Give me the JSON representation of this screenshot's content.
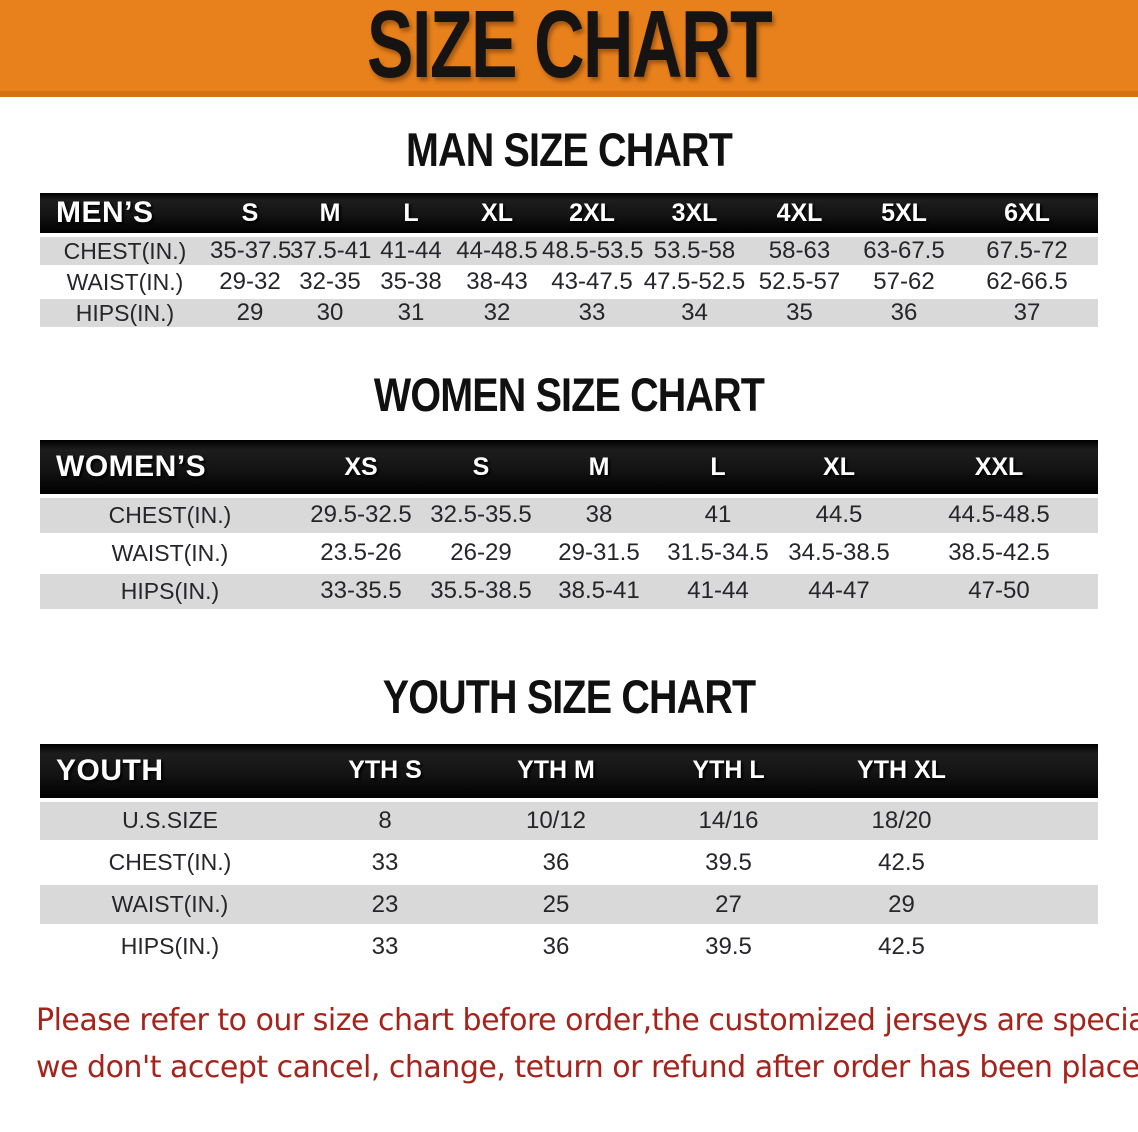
{
  "banner": {
    "title": "SIZE CHART"
  },
  "sections": [
    {
      "id": "men",
      "title": "MAN SIZE CHART",
      "table": {
        "label": "MEN’S",
        "columns": [
          "S",
          "M",
          "L",
          "XL",
          "2XL",
          "3XL",
          "4XL",
          "5XL",
          "6XL"
        ],
        "rows": [
          {
            "label": "CHEST(IN.)",
            "values": [
              "35-37.5",
              "37.5-41",
              "41-44",
              "44-48.5",
              "48.5-53.5",
              "53.5-58",
              "58-63",
              "63-67.5",
              "67.5-72"
            ]
          },
          {
            "label": "WAIST(IN.)",
            "values": [
              "29-32",
              "32-35",
              "35-38",
              "38-43",
              "43-47.5",
              "47.5-52.5",
              "52.5-57",
              "57-62",
              "62-66.5"
            ]
          },
          {
            "label": "HIPS(IN.)",
            "values": [
              "29",
              "30",
              "31",
              "32",
              "33",
              "34",
              "35",
              "36",
              "37"
            ]
          }
        ]
      }
    },
    {
      "id": "women",
      "title": "WOMEN SIZE CHART",
      "table": {
        "label": "WOMEN’S",
        "columns": [
          "XS",
          "S",
          "M",
          "L",
          "XL",
          "XXL"
        ],
        "rows": [
          {
            "label": "CHEST(IN.)",
            "values": [
              "29.5-32.5",
              "32.5-35.5",
              "38",
              "41",
              "44.5",
              "44.5-48.5"
            ]
          },
          {
            "label": "WAIST(IN.)",
            "values": [
              "23.5-26",
              "26-29",
              "29-31.5",
              "31.5-34.5",
              "34.5-38.5",
              "38.5-42.5"
            ]
          },
          {
            "label": "HIPS(IN.)",
            "values": [
              "33-35.5",
              "35.5-38.5",
              "38.5-41",
              "41-44",
              "44-47",
              "47-50"
            ]
          }
        ]
      }
    },
    {
      "id": "youth",
      "title": "YOUTH SIZE CHART",
      "table": {
        "label": "YOUTH",
        "columns": [
          "YTH S",
          "YTH M",
          "YTH L",
          "YTH XL"
        ],
        "rows": [
          {
            "label": "U.S.SIZE",
            "values": [
              "8",
              "10/12",
              "14/16",
              "18/20"
            ]
          },
          {
            "label": "CHEST(IN.)",
            "values": [
              "33",
              "36",
              "39.5",
              "42.5"
            ]
          },
          {
            "label": "WAIST(IN.)",
            "values": [
              "23",
              "25",
              "27",
              "29"
            ]
          },
          {
            "label": "HIPS(IN.)",
            "values": [
              "33",
              "36",
              "39.5",
              "42.5"
            ]
          }
        ]
      }
    }
  ],
  "footer": {
    "line1": "Please refer to our size chart before order,the customized jerseys are special products,",
    "line2": "we don't accept cancel, change, teturn or refund after order has been placed!"
  },
  "colors": {
    "banner_orange": "#e8811c",
    "banner_edge": "#d4700f",
    "band_black": "#141414",
    "row_gray": "#d9d9d9",
    "footer_red": "#a6231b"
  }
}
